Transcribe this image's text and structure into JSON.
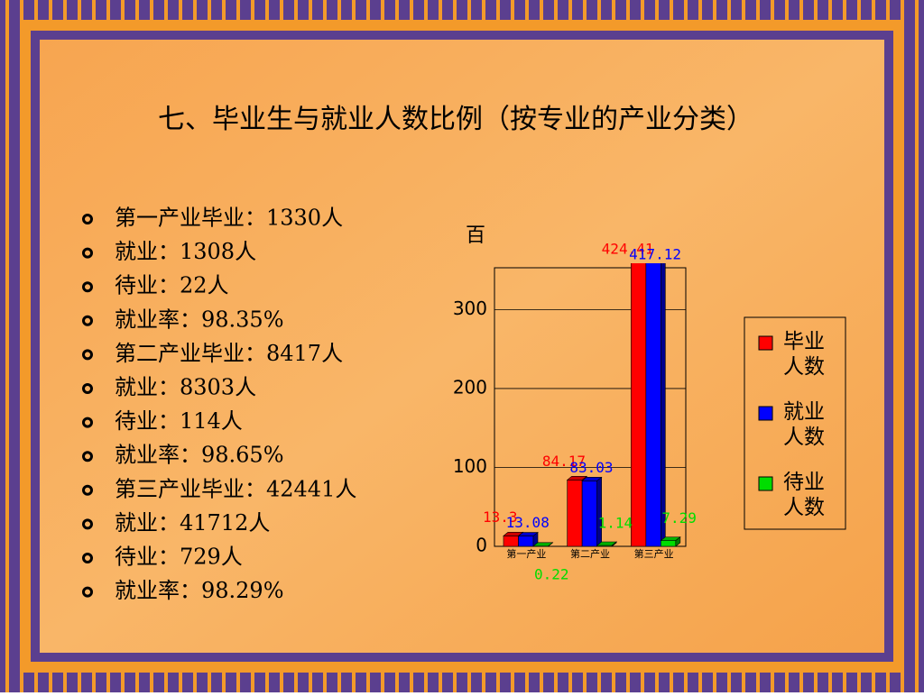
{
  "title": "七、毕业生与就业人数比例（按专业的产业分类）",
  "bullets": [
    "第一产业毕业：1330人",
    "就业：1308人",
    "待业：22人",
    "就业率：98.35%",
    "第二产业毕业：8417人",
    "就业：8303人",
    "待业：114人",
    "就业率：98.65%",
    "第三产业毕业：42441人",
    "就业：41712人",
    "待业：729人",
    "就业率：98.29%"
  ],
  "chart_data": {
    "type": "bar3d",
    "y_label": "百",
    "categories": [
      "第一产业",
      "第二产业",
      "第三产业"
    ],
    "series": [
      {
        "name": "毕业人数",
        "color": "#ff0000",
        "values": [
          13.3,
          84.17,
          424.41
        ]
      },
      {
        "name": "就业人数",
        "color": "#0000ff",
        "values": [
          13.08,
          83.03,
          417.12
        ]
      },
      {
        "name": "待业人数",
        "color": "#00dd00",
        "values": [
          0.22,
          1.14,
          7.29
        ]
      }
    ],
    "ylim": [
      0,
      353
    ],
    "yticks": [
      0,
      100,
      200,
      300
    ],
    "grid": true,
    "legend": "right"
  }
}
